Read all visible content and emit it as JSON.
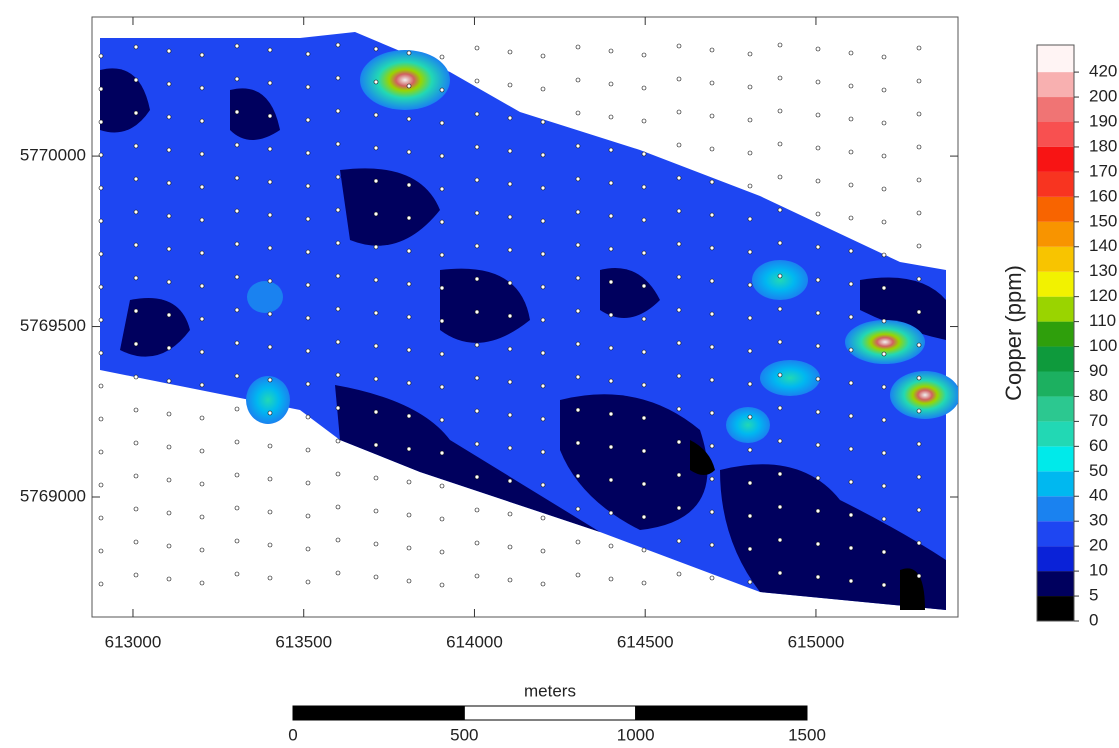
{
  "map": {
    "xlim": [
      612880,
      615416
    ],
    "ylim": [
      5768648,
      5770408
    ],
    "xticks": [
      613000,
      613500,
      614000,
      614500,
      615000
    ],
    "yticks": [
      5769000,
      5769500,
      5770000
    ],
    "colorbar": {
      "label": "Copper (ppm)",
      "levels": [
        0,
        5,
        10,
        20,
        30,
        40,
        50,
        60,
        70,
        80,
        90,
        100,
        110,
        120,
        130,
        140,
        150,
        160,
        170,
        180,
        190,
        200,
        420
      ],
      "colors": [
        "#000000",
        "#00005e",
        "#0a22d8",
        "#1e46f2",
        "#1a82f0",
        "#00b8f0",
        "#00eaea",
        "#22d8b4",
        "#2cc890",
        "#1cb060",
        "#0e9a3c",
        "#2f9f0c",
        "#9ad400",
        "#f2f200",
        "#f8c400",
        "#f89400",
        "#f86400",
        "#f83420",
        "#f81414",
        "#f85050",
        "#f07474",
        "#f8b0b0",
        "#fff4f4"
      ]
    },
    "scale_bar": {
      "label": "meters",
      "ticks": [
        0,
        500,
        1000,
        1500
      ]
    }
  }
}
